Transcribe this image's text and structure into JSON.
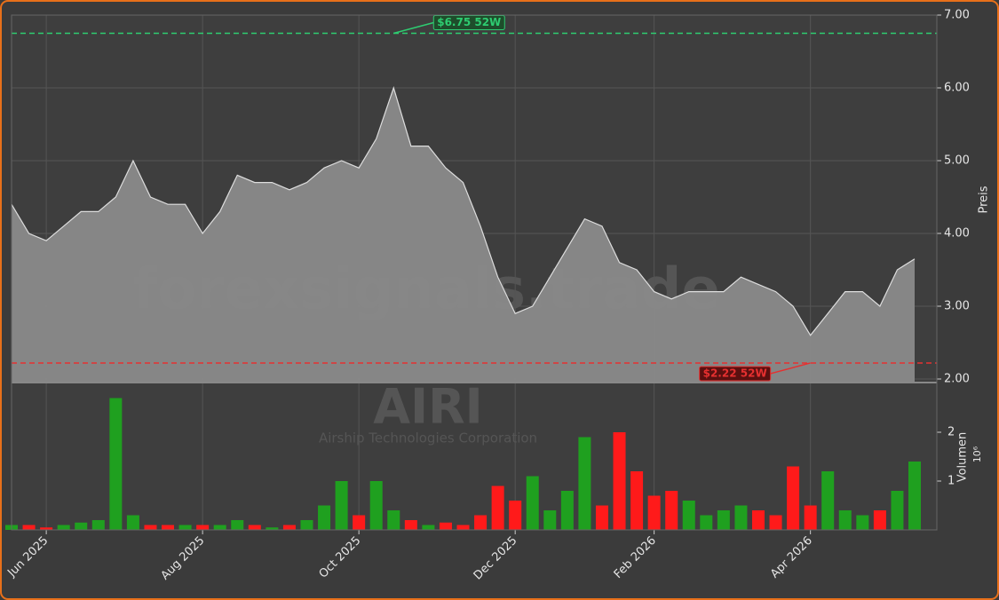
{
  "chart_data": {
    "type": "area",
    "watermark": "forexsignals.trade",
    "ticker": "AIRI",
    "company": "Airship Technologies Corporation",
    "categories": [
      null,
      null,
      "Jun 2025",
      null,
      null,
      null,
      null,
      null,
      null,
      null,
      null,
      "Aug 2025",
      null,
      null,
      null,
      null,
      null,
      null,
      null,
      null,
      "Oct 2025",
      null,
      null,
      null,
      null,
      null,
      null,
      null,
      null,
      "Dec 2025",
      null,
      null,
      null,
      null,
      null,
      null,
      null,
      "Feb 2026",
      null,
      null,
      null,
      null,
      null,
      null,
      null,
      null,
      "Apr 2026",
      null,
      null,
      null,
      null,
      null,
      null
    ],
    "series": [
      {
        "name": "Preis",
        "color": "#8a8a8a",
        "values": [
          4.4,
          4.0,
          3.9,
          4.1,
          4.3,
          4.3,
          4.5,
          5.0,
          4.5,
          4.4,
          4.4,
          4.0,
          4.3,
          4.8,
          4.7,
          4.7,
          4.6,
          4.7,
          4.9,
          5.0,
          4.9,
          5.3,
          6.0,
          5.2,
          5.2,
          4.9,
          4.7,
          4.1,
          3.4,
          2.9,
          3.0,
          3.4,
          3.8,
          4.2,
          4.1,
          3.6,
          3.5,
          3.2,
          3.1,
          3.2,
          3.2,
          3.2,
          3.4,
          3.3,
          3.2,
          3.0,
          2.6,
          2.9,
          3.2,
          3.2,
          3.0,
          3.5,
          3.65
        ]
      }
    ],
    "ylabel": "Preis",
    "ylim": [
      2,
      7
    ],
    "yticks": [
      {
        "value": 2,
        "label": "2.00"
      },
      {
        "value": 3,
        "label": "3.00"
      },
      {
        "value": 4,
        "label": "4.00"
      },
      {
        "value": 5,
        "label": "5.00"
      },
      {
        "value": 6,
        "label": "6.00"
      },
      {
        "value": 7,
        "label": "7.00"
      }
    ],
    "annotations": [
      {
        "text": "$6.75 52W",
        "value": 6.75,
        "color": "#2ecc71"
      },
      {
        "text": "$2.22 52W",
        "value": 2.22,
        "color": "#e63030"
      }
    ],
    "volume": {
      "ylabel": "Volumen",
      "exponent_label": "10⁶",
      "ylim": [
        0,
        3
      ],
      "yticks": [
        1,
        2
      ],
      "up_color": "#1fa01f",
      "down_color": "#ff1a1a",
      "values": [
        0.1,
        0.1,
        0.05,
        0.1,
        0.15,
        0.2,
        2.7,
        0.3,
        0.1,
        0.1,
        0.1,
        0.1,
        0.1,
        0.2,
        0.1,
        0.05,
        0.1,
        0.2,
        0.5,
        1.0,
        0.3,
        1.0,
        0.4,
        0.2,
        0.1,
        0.15,
        0.1,
        0.3,
        0.9,
        0.6,
        1.1,
        0.4,
        0.8,
        1.9,
        0.5,
        2.0,
        1.2,
        0.7,
        0.8,
        0.6,
        0.3,
        0.4,
        0.5,
        0.4,
        0.3,
        1.3,
        0.5,
        1.2,
        0.4,
        0.3,
        0.4,
        0.8,
        1.4
      ]
    },
    "grid": true
  }
}
